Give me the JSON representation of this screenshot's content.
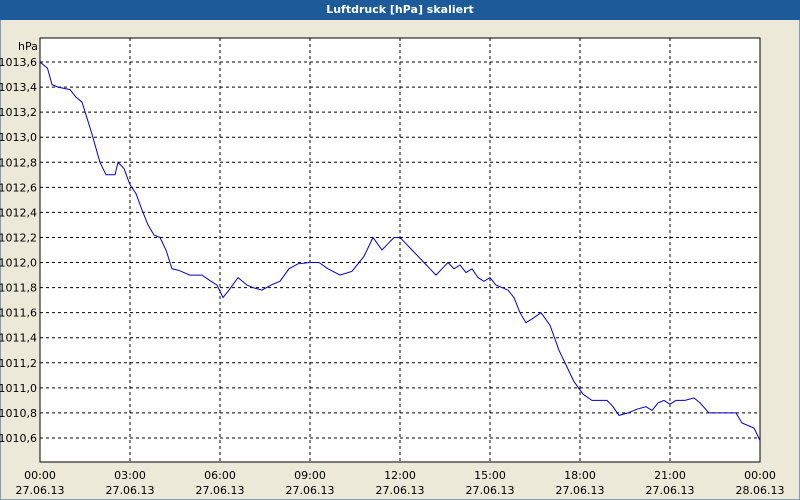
{
  "window": {
    "title": "Luftdruck [hPa] skaliert"
  },
  "chart_data": {
    "type": "line",
    "title": "Luftdruck [hPa] skaliert",
    "ylabel": "hPa",
    "xlabel": "",
    "ylim": [
      1010.5,
      1013.65
    ],
    "xlim": [
      0,
      24
    ],
    "grid": true,
    "y_ticks": [
      "1010,6",
      "1010,8",
      "1011,0",
      "1011,2",
      "1011,4",
      "1011,6",
      "1011,8",
      "1012,0",
      "1012,2",
      "1012,4",
      "1012,6",
      "1012,8",
      "1013,0",
      "1013,2",
      "1013,4",
      "1013,6"
    ],
    "x_ticks": [
      {
        "time": "00:00",
        "date": "27.06.13"
      },
      {
        "time": "03:00",
        "date": "27.06.13"
      },
      {
        "time": "06:00",
        "date": "27.06.13"
      },
      {
        "time": "09:00",
        "date": "27.06.13"
      },
      {
        "time": "12:00",
        "date": "27.06.13"
      },
      {
        "time": "15:00",
        "date": "27.06.13"
      },
      {
        "time": "18:00",
        "date": "27.06.13"
      },
      {
        "time": "21:00",
        "date": "27.06.13"
      },
      {
        "time": "00:00",
        "date": "28.06.13"
      }
    ],
    "line_color": "#0000cc",
    "series": [
      {
        "x": [
          0.0,
          0.25,
          0.4,
          0.6,
          1.0,
          1.2,
          1.4,
          1.7,
          2.0,
          2.2,
          2.5,
          2.6,
          2.8,
          3.0,
          3.2,
          3.4,
          3.6,
          3.8,
          4.0,
          4.2,
          4.4,
          4.6,
          5.0,
          5.4,
          5.7,
          5.9,
          6.1,
          6.3,
          6.6,
          6.9,
          7.1,
          7.4,
          7.7,
          8.0,
          8.3,
          8.6,
          9.0,
          9.3,
          9.6,
          10.0,
          10.4,
          10.8,
          11.1,
          11.4,
          11.6,
          11.8,
          12.0,
          12.2,
          12.4,
          12.6,
          12.8,
          13.0,
          13.2,
          13.4,
          13.6,
          13.8,
          14.0,
          14.2,
          14.4,
          14.6,
          14.8,
          15.0,
          15.2,
          15.4,
          15.6,
          15.8,
          16.0,
          16.2,
          16.4,
          16.7,
          17.0,
          17.3,
          17.6,
          17.8,
          18.1,
          18.4,
          18.6,
          18.9,
          19.1,
          19.3,
          19.6,
          19.9,
          20.2,
          20.4,
          20.6,
          20.8,
          21.0,
          21.2,
          21.5,
          21.8,
          22.0,
          22.3,
          22.6,
          22.8,
          23.2,
          23.4,
          23.6,
          23.8,
          24.0
        ],
        "values": [
          1013.6,
          1013.55,
          1013.42,
          1013.4,
          1013.38,
          1013.32,
          1013.28,
          1013.05,
          1012.8,
          1012.7,
          1012.7,
          1012.8,
          1012.75,
          1012.62,
          1012.55,
          1012.42,
          1012.3,
          1012.22,
          1012.2,
          1012.1,
          1011.95,
          1011.94,
          1011.9,
          1011.9,
          1011.85,
          1011.82,
          1011.72,
          1011.78,
          1011.88,
          1011.82,
          1011.8,
          1011.78,
          1011.82,
          1011.85,
          1011.95,
          1011.99,
          1012.0,
          1012.0,
          1011.95,
          1011.9,
          1011.93,
          1012.05,
          1012.2,
          1012.1,
          1012.15,
          1012.2,
          1012.2,
          1012.15,
          1012.1,
          1012.05,
          1012.0,
          1011.95,
          1011.9,
          1011.95,
          1012.0,
          1011.95,
          1011.98,
          1011.92,
          1011.95,
          1011.88,
          1011.85,
          1011.88,
          1011.82,
          1011.8,
          1011.78,
          1011.72,
          1011.6,
          1011.52,
          1011.55,
          1011.6,
          1011.5,
          1011.3,
          1011.15,
          1011.05,
          1010.95,
          1010.9,
          1010.9,
          1010.9,
          1010.85,
          1010.78,
          1010.8,
          1010.83,
          1010.85,
          1010.82,
          1010.88,
          1010.9,
          1010.87,
          1010.9,
          1010.9,
          1010.92,
          1010.88,
          1010.8,
          1010.8,
          1010.8,
          1010.8,
          1010.72,
          1010.7,
          1010.68,
          1010.58
        ]
      }
    ]
  }
}
